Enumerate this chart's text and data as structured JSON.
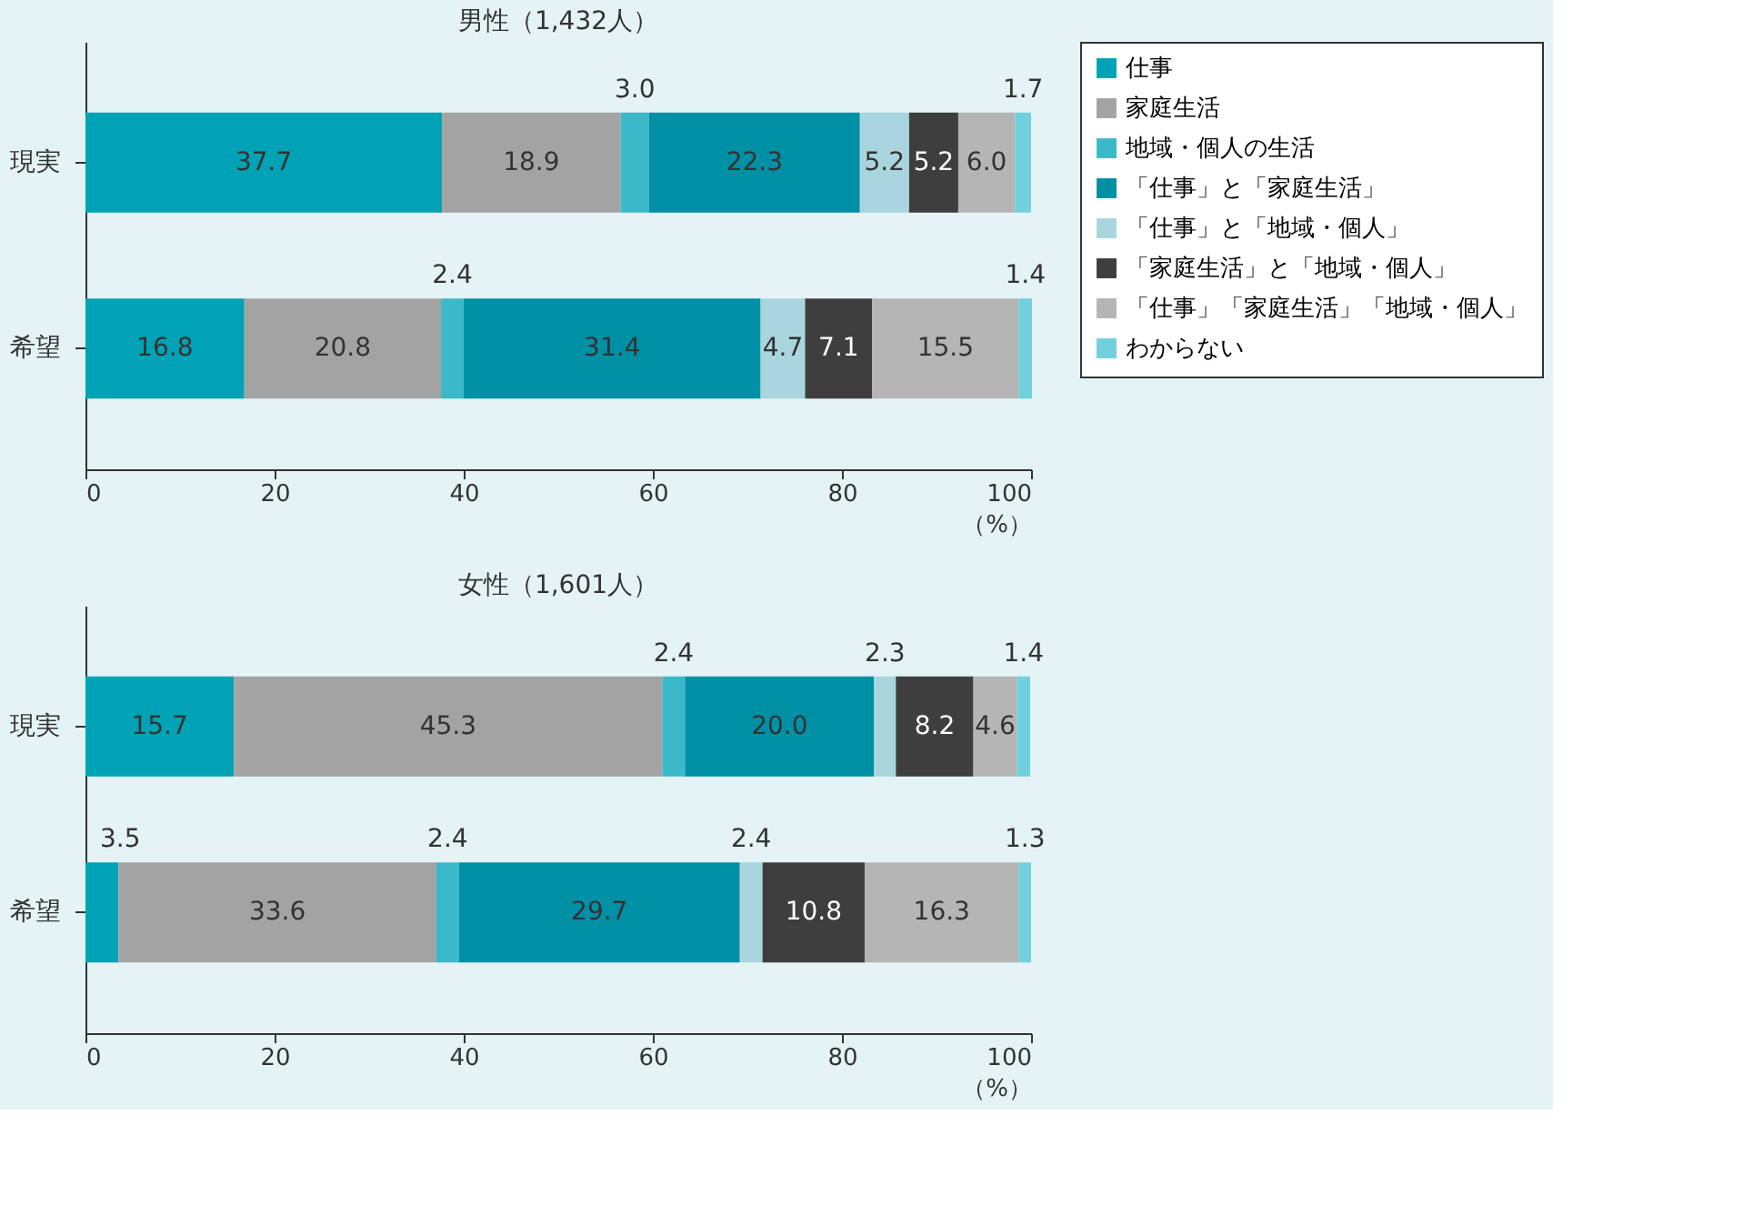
{
  "chart_data": [
    {
      "type": "bar",
      "orientation": "horizontal",
      "stacked": true,
      "title": "男性（1,432人）",
      "xlabel": "（%）",
      "categories": [
        "現実",
        "希望"
      ],
      "xlim": [
        0,
        100
      ],
      "xticks": [
        0,
        20,
        40,
        60,
        80,
        100
      ],
      "grid": false,
      "legend": "right",
      "series": [
        {
          "name": "仕事",
          "color": "#00a3b5",
          "values": [
            37.7,
            16.8
          ],
          "value_labels": [
            "37.7",
            "16.8"
          ]
        },
        {
          "name": "家庭生活",
          "color": "#a3a3a3",
          "values": [
            18.9,
            20.8
          ],
          "value_labels": [
            "18.9",
            "20.8"
          ]
        },
        {
          "name": "地域・個人の生活",
          "color": "#3cb9c8",
          "values": [
            3.0,
            2.4
          ],
          "value_labels": [
            "3.0",
            "2.4"
          ]
        },
        {
          "name": "「仕事」と「家庭生活」",
          "color": "#0090a6",
          "values": [
            22.3,
            31.4
          ],
          "value_labels": [
            "22.3",
            "31.4"
          ]
        },
        {
          "name": "「仕事」と「地域・個人」",
          "color": "#a9d6de",
          "values": [
            5.2,
            4.7
          ],
          "value_labels": [
            "5.2",
            "4.7"
          ]
        },
        {
          "name": "「家庭生活」と「地域・個人」",
          "color": "#3e3e3e",
          "values": [
            5.2,
            7.1
          ],
          "value_labels": [
            "5.2",
            "7.1"
          ]
        },
        {
          "name": "「仕事」「家庭生活」「地域・個人」",
          "color": "#b5b5b5",
          "values": [
            6.0,
            15.5
          ],
          "value_labels": [
            "6.0",
            "15.5"
          ]
        },
        {
          "name": "わからない",
          "color": "#72d0de",
          "values": [
            1.7,
            1.4
          ],
          "value_labels": [
            "1.7",
            "1.4"
          ]
        }
      ]
    },
    {
      "type": "bar",
      "orientation": "horizontal",
      "stacked": true,
      "title": "女性（1,601人）",
      "xlabel": "（%）",
      "categories": [
        "現実",
        "希望"
      ],
      "xlim": [
        0,
        100
      ],
      "xticks": [
        0,
        20,
        40,
        60,
        80,
        100
      ],
      "grid": false,
      "legend": "right",
      "series": [
        {
          "name": "仕事",
          "color": "#00a3b5",
          "values": [
            15.7,
            3.5
          ],
          "value_labels": [
            "15.7",
            "3.5"
          ]
        },
        {
          "name": "家庭生活",
          "color": "#a3a3a3",
          "values": [
            45.3,
            33.6
          ],
          "value_labels": [
            "45.3",
            "33.6"
          ]
        },
        {
          "name": "地域・個人の生活",
          "color": "#3cb9c8",
          "values": [
            2.4,
            2.4
          ],
          "value_labels": [
            "2.4",
            "2.4"
          ]
        },
        {
          "name": "「仕事」と「家庭生活」",
          "color": "#0090a6",
          "values": [
            20.0,
            29.7
          ],
          "value_labels": [
            "20.0",
            "29.7"
          ]
        },
        {
          "name": "「仕事」と「地域・個人」",
          "color": "#a9d6de",
          "values": [
            2.3,
            2.4
          ],
          "value_labels": [
            "2.3",
            "2.4"
          ]
        },
        {
          "name": "「家庭生活」と「地域・個人」",
          "color": "#3e3e3e",
          "values": [
            8.2,
            10.8
          ],
          "value_labels": [
            "8.2",
            "10.8"
          ]
        },
        {
          "name": "「仕事」「家庭生活」「地域・個人」",
          "color": "#b5b5b5",
          "values": [
            4.6,
            16.3
          ],
          "value_labels": [
            "4.6",
            "16.3"
          ]
        },
        {
          "name": "わからない",
          "color": "#72d0de",
          "values": [
            1.4,
            1.3
          ],
          "value_labels": [
            "1.4",
            "1.3"
          ]
        }
      ]
    }
  ]
}
